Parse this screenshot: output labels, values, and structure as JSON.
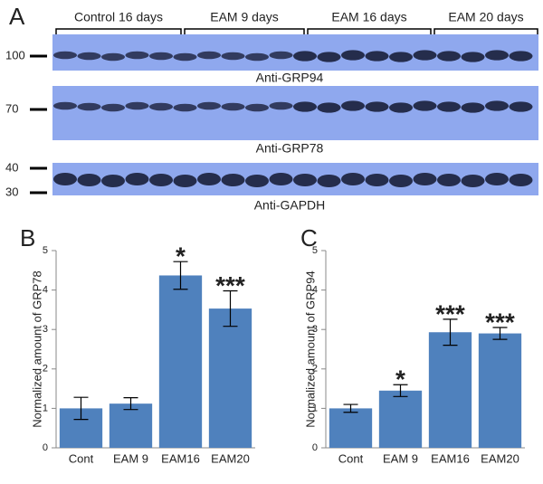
{
  "blot": {
    "panel": "A",
    "groups": [
      "Control 16 days",
      "EAM 9 days",
      "EAM 16 days",
      "EAM 20 days"
    ],
    "strips": [
      {
        "markers": [
          "100"
        ],
        "antibody": "Anti-GRP94"
      },
      {
        "markers": [
          "70"
        ],
        "antibody": "Anti-GRP78"
      },
      {
        "markers": [
          "40",
          "30"
        ],
        "antibody": "Anti-GAPDH"
      }
    ]
  },
  "chart_data": [
    {
      "type": "bar",
      "panel": "B",
      "y_label": "Normalized amount of GRP78",
      "categories": [
        "Cont",
        "EAM 9",
        "EAM16",
        "EAM20"
      ],
      "values": [
        1.0,
        1.12,
        4.37,
        3.53
      ],
      "errors": [
        0.28,
        0.15,
        0.35,
        0.45
      ],
      "annotations": [
        null,
        null,
        "*",
        "***"
      ],
      "color": "#4f81bd",
      "ylim": [
        0,
        5
      ],
      "yticks": [
        0,
        1,
        2,
        3,
        4,
        5
      ]
    },
    {
      "type": "bar",
      "panel": "C",
      "y_label": "Normalized amount of GRP94",
      "categories": [
        "Cont",
        "EAM 9",
        "EAM16",
        "EAM20"
      ],
      "values": [
        1.0,
        1.45,
        2.93,
        2.9
      ],
      "errors": [
        0.1,
        0.15,
        0.33,
        0.15
      ],
      "annotations": [
        null,
        "*",
        "***",
        "***"
      ],
      "color": "#4f81bd",
      "ylim": [
        0,
        5
      ],
      "yticks": [
        0,
        1,
        2,
        3,
        4,
        5
      ]
    }
  ]
}
